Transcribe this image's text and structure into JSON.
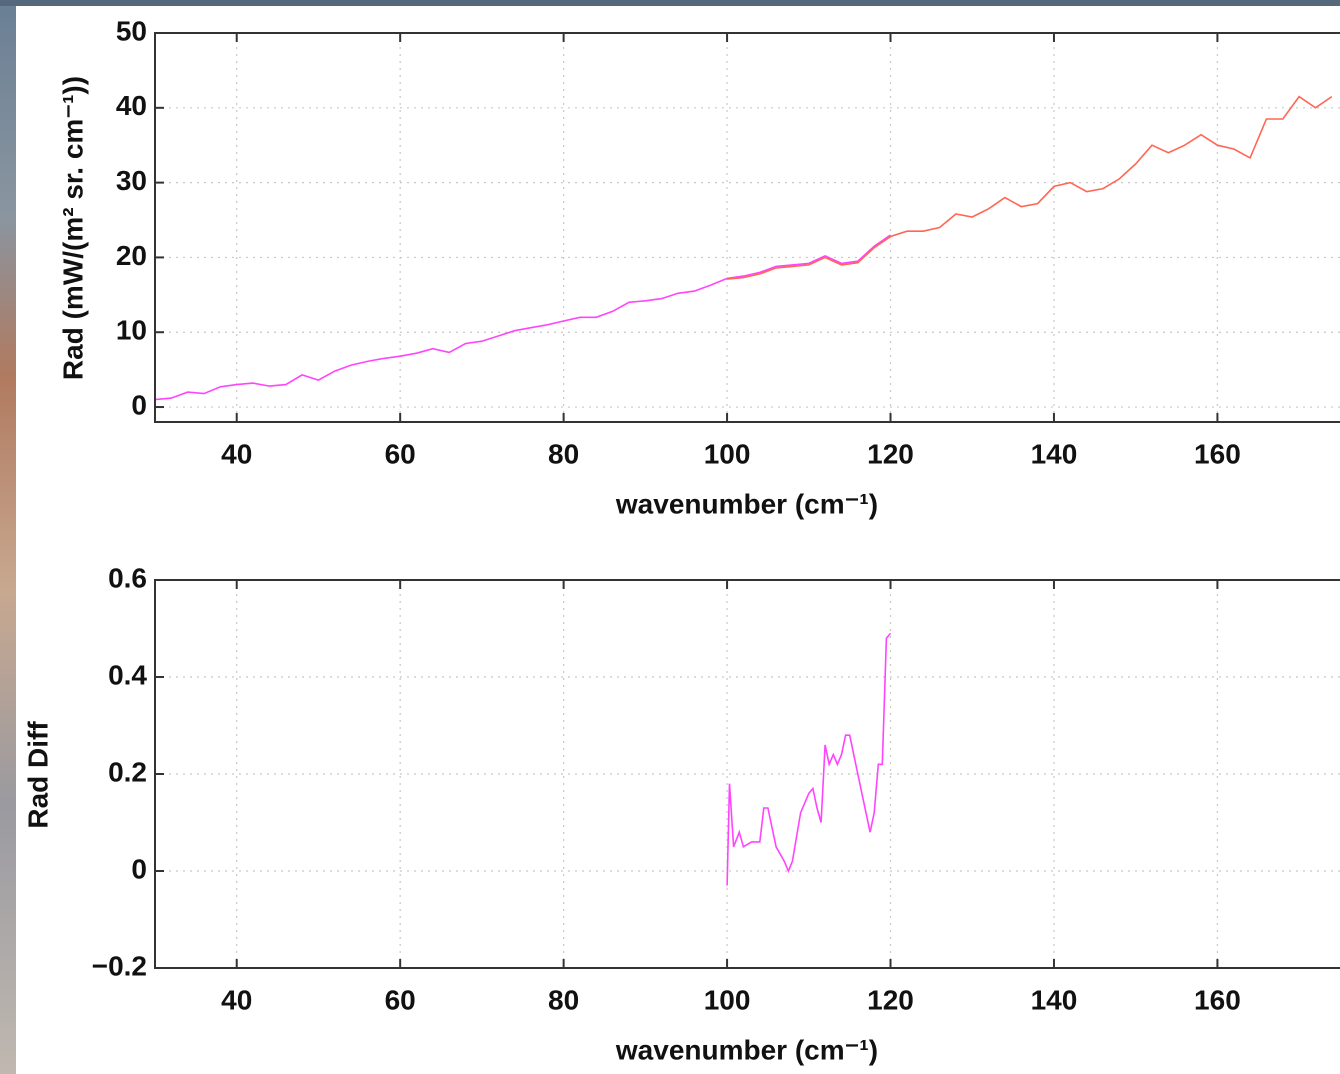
{
  "chart_data": [
    {
      "type": "line",
      "y_label": "Rad (mW/(m² sr. cm⁻¹))",
      "x_label": "wavenumber (cm⁻¹)",
      "xlim": [
        30,
        175
      ],
      "ylim": [
        -2,
        50
      ],
      "xticks": [
        40,
        60,
        80,
        100,
        120,
        140,
        160
      ],
      "yticks": [
        0,
        10,
        20,
        30,
        40,
        50
      ],
      "grid": true,
      "series": [
        {
          "color": "#ff44ff",
          "x": [
            30,
            32,
            34,
            36,
            38,
            40,
            42,
            44,
            46,
            48,
            50,
            52,
            54,
            56,
            58,
            60,
            62,
            64,
            66,
            68,
            70,
            72,
            74,
            76,
            78,
            80,
            82,
            84,
            86,
            88,
            90,
            92,
            94,
            96,
            98,
            100,
            102,
            104,
            106,
            108,
            110,
            112,
            114,
            116,
            118,
            120
          ],
          "values": [
            1,
            1.2,
            2,
            1.8,
            2.7,
            3,
            3.2,
            2.8,
            3,
            4.3,
            3.6,
            4.8,
            5.6,
            6.1,
            6.5,
            6.8,
            7.2,
            7.8,
            7.3,
            8.5,
            8.8,
            9.5,
            10.2,
            10.6,
            11,
            11.5,
            12,
            12,
            12.8,
            14,
            14.2,
            14.5,
            15.2,
            15.5,
            16.3,
            17.2,
            17.5,
            18,
            18.8,
            19,
            19.2,
            20.2,
            19.2,
            19.5,
            21.5,
            23
          ]
        },
        {
          "color": "#ff6655",
          "x": [
            100,
            102,
            104,
            106,
            108,
            110,
            112,
            114,
            116,
            118,
            120,
            122,
            124,
            126,
            128,
            130,
            132,
            134,
            136,
            138,
            140,
            142,
            144,
            146,
            148,
            150,
            152,
            154,
            156,
            158,
            160,
            162,
            164,
            166,
            168,
            170,
            172,
            174
          ],
          "values": [
            17.1,
            17.3,
            17.8,
            18.6,
            18.8,
            19,
            20,
            19,
            19.3,
            21.3,
            22.8,
            23.5,
            23.5,
            24,
            25.8,
            25.4,
            26.5,
            28,
            26.8,
            27.2,
            29.5,
            30,
            28.8,
            29.2,
            30.5,
            32.5,
            35,
            34,
            35,
            36.4,
            35,
            34.5,
            33.3,
            38.5,
            38.5,
            41.5,
            40,
            41.5
          ]
        }
      ]
    },
    {
      "type": "line",
      "y_label": "Rad Diff",
      "x_label": "wavenumber (cm⁻¹)",
      "xlim": [
        30,
        175
      ],
      "ylim": [
        -0.2,
        0.6
      ],
      "xticks": [
        40,
        60,
        80,
        100,
        120,
        140,
        160
      ],
      "yticks": [
        {
          "value": -0.2,
          "label": "−0.2"
        },
        0,
        0.2,
        0.4,
        0.6
      ],
      "grid": true,
      "series": [
        {
          "color": "#ff44ff",
          "x": [
            100,
            100.3,
            100.8,
            101.5,
            102,
            103,
            104,
            104.5,
            105,
            106,
            107,
            107.5,
            108,
            109,
            110,
            110.5,
            111,
            111.5,
            112,
            112.5,
            113,
            113.5,
            114,
            114.5,
            115,
            116,
            117,
            117.5,
            118,
            118.5,
            119,
            119.5,
            120
          ],
          "values": [
            -0.03,
            0.18,
            0.05,
            0.08,
            0.05,
            0.06,
            0.06,
            0.13,
            0.13,
            0.05,
            0.02,
            0,
            0.02,
            0.12,
            0.16,
            0.17,
            0.13,
            0.1,
            0.26,
            0.22,
            0.24,
            0.22,
            0.24,
            0.28,
            0.28,
            0.2,
            0.12,
            0.08,
            0.12,
            0.22,
            0.22,
            0.48,
            0.49
          ]
        }
      ]
    }
  ]
}
